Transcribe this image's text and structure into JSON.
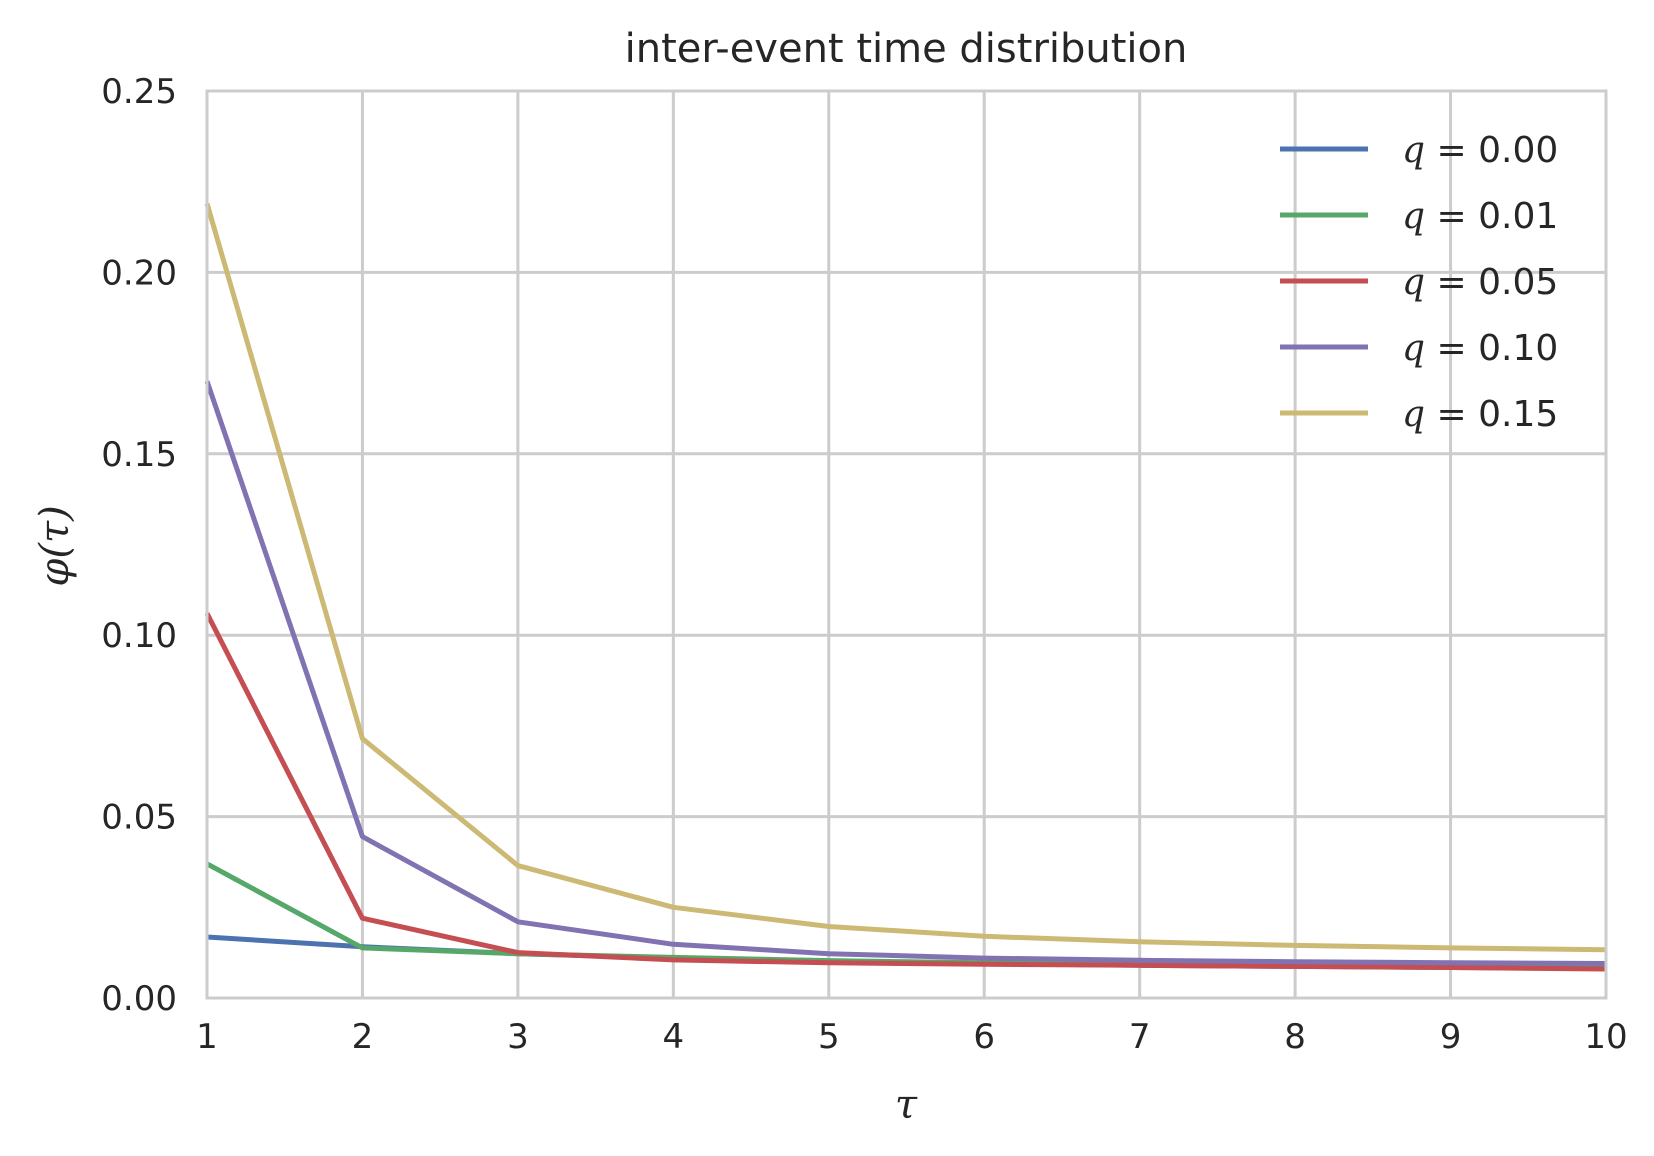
{
  "chart_data": {
    "type": "line",
    "title": "inter-event time distribution",
    "xlabel": "τ",
    "ylabel": "φ(τ)",
    "x": [
      1,
      2,
      3,
      4,
      5,
      6,
      7,
      8,
      9,
      10
    ],
    "xlim": [
      1,
      10
    ],
    "ylim": [
      0,
      0.25
    ],
    "xticks": [
      "1",
      "2",
      "3",
      "4",
      "5",
      "6",
      "7",
      "8",
      "9",
      "10"
    ],
    "yticks": [
      "0.00",
      "0.05",
      "0.10",
      "0.15",
      "0.20",
      "0.25"
    ],
    "grid": true,
    "legend_position": "top-right",
    "series": [
      {
        "name": "q = 0.00",
        "legend_q": "q",
        "legend_rest": " = 0.00",
        "color": "#4c72b0",
        "values": [
          0.0168,
          0.0141,
          0.0122,
          0.011,
          0.01,
          0.0095,
          0.009,
          0.0087,
          0.0084,
          0.0082
        ]
      },
      {
        "name": "q = 0.01",
        "legend_q": "q",
        "legend_rest": " = 0.01",
        "color": "#55a868",
        "values": [
          0.037,
          0.0138,
          0.0122,
          0.0112,
          0.0103,
          0.0097,
          0.0092,
          0.0088,
          0.0085,
          0.0083
        ]
      },
      {
        "name": "q = 0.05",
        "legend_q": "q",
        "legend_rest": " = 0.05",
        "color": "#c44e52",
        "values": [
          0.106,
          0.022,
          0.0125,
          0.0105,
          0.0097,
          0.0093,
          0.009,
          0.0087,
          0.0084,
          0.008
        ]
      },
      {
        "name": "q = 0.10",
        "legend_q": "q",
        "legend_rest": " = 0.10",
        "color": "#8172b2",
        "values": [
          0.17,
          0.0445,
          0.021,
          0.0148,
          0.0122,
          0.011,
          0.0104,
          0.01,
          0.0097,
          0.0095
        ]
      },
      {
        "name": "q = 0.15",
        "legend_q": "q",
        "legend_rest": " = 0.15",
        "color": "#ccb974",
        "values": [
          0.219,
          0.0715,
          0.0365,
          0.025,
          0.0197,
          0.017,
          0.0155,
          0.0145,
          0.0138,
          0.0133
        ]
      }
    ]
  }
}
